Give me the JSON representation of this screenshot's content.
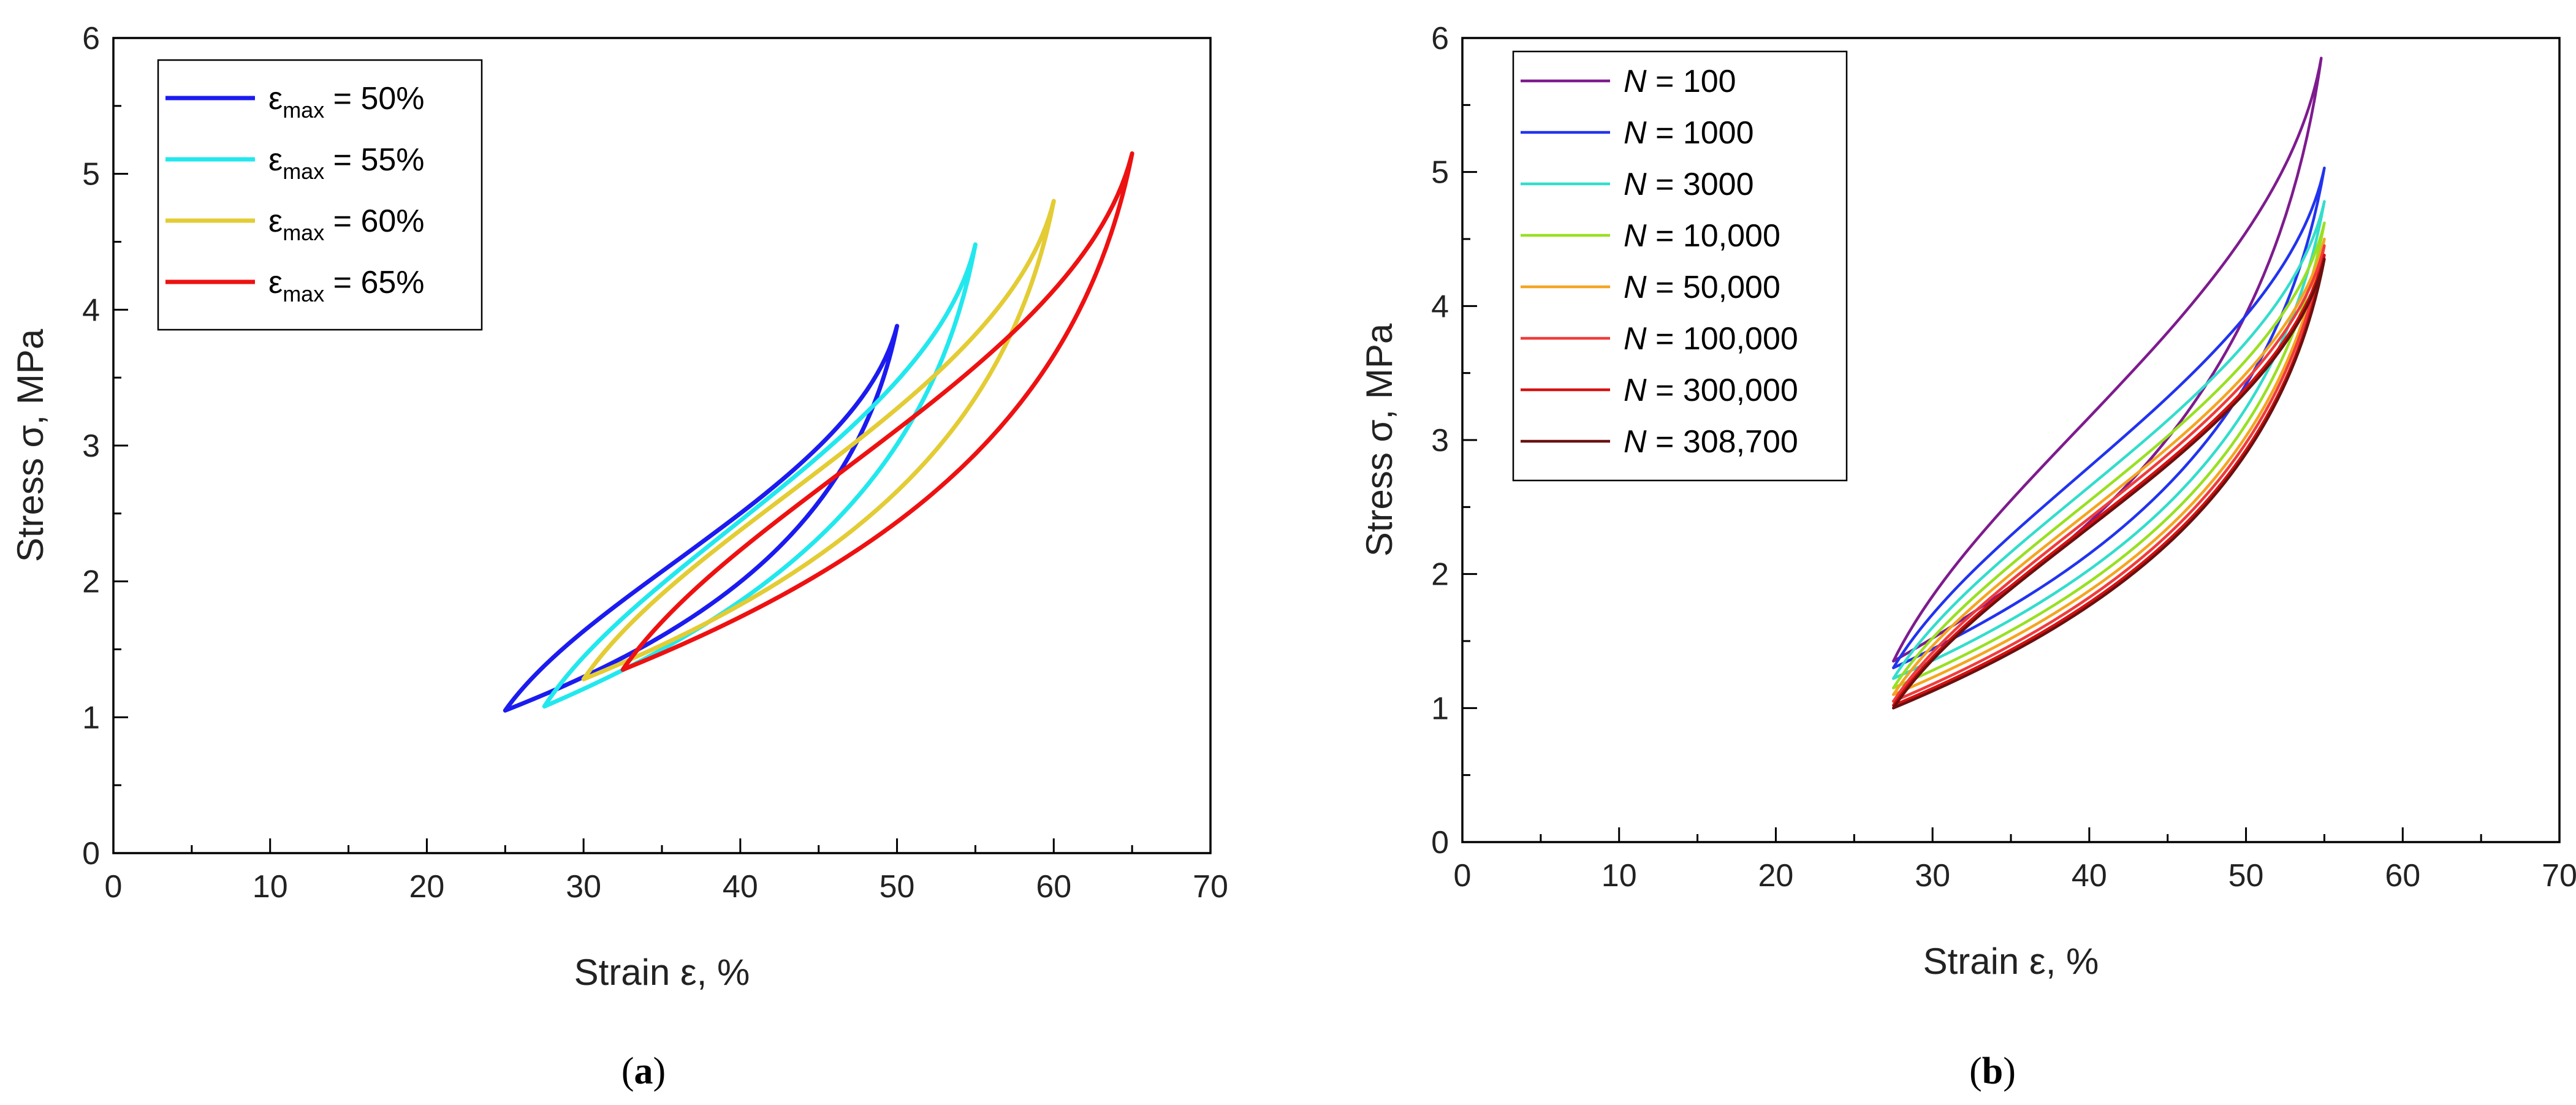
{
  "chart_data": [
    {
      "type": "line",
      "panel": "a",
      "caption_letter": "a",
      "xlabel": "Strain ε, %",
      "ylabel": "Stress σ, MPa",
      "xlim": [
        0,
        70
      ],
      "ylim": [
        0,
        6
      ],
      "xticks": [
        "0",
        "10",
        "20",
        "30",
        "40",
        "50",
        "60",
        "70"
      ],
      "yticks": [
        "0",
        "1",
        "2",
        "3",
        "4",
        "5",
        "6"
      ],
      "legend_position": "top-left",
      "series": [
        {
          "name_main": "ε",
          "name_sub": "max",
          "name_rest": " = 50%",
          "color": "#1b1bf0",
          "emin": 25,
          "smin": 1.05,
          "emax": 50,
          "smax": 3.88
        },
        {
          "name_main": "ε",
          "name_sub": "max",
          "name_rest": " = 55%",
          "color": "#22e8ee",
          "emin": 27.5,
          "smin": 1.08,
          "emax": 55,
          "smax": 4.48
        },
        {
          "name_main": "ε",
          "name_sub": "max",
          "name_rest": " = 60%",
          "color": "#e3cc34",
          "emin": 30,
          "smin": 1.28,
          "emax": 60,
          "smax": 4.8
        },
        {
          "name_main": "ε",
          "name_sub": "max",
          "name_rest": " = 65%",
          "color": "#ee1111",
          "emin": 32.5,
          "smin": 1.35,
          "emax": 65,
          "smax": 5.15
        }
      ]
    },
    {
      "type": "line",
      "panel": "b",
      "caption_letter": "b",
      "xlabel": "Strain ε, %",
      "ylabel": "Stress σ, MPa",
      "xlim": [
        0,
        70
      ],
      "ylim": [
        0,
        6
      ],
      "xticks": [
        "0",
        "10",
        "20",
        "30",
        "40",
        "50",
        "60",
        "70"
      ],
      "yticks": [
        "0",
        "1",
        "2",
        "3",
        "4",
        "5",
        "6"
      ],
      "legend_position": "top-left",
      "series": [
        {
          "name_var": "N",
          "name_rest": " = 100",
          "color": "#7e1b8e",
          "emin": 27.5,
          "smin": 1.35,
          "emax": 54.8,
          "smax": 5.85
        },
        {
          "name_var": "N",
          "name_rest": " = 1000",
          "color": "#2233ee",
          "emin": 27.5,
          "smin": 1.3,
          "emax": 55,
          "smax": 5.03
        },
        {
          "name_var": "N",
          "name_rest": " = 3000",
          "color": "#33ddcc",
          "emin": 27.5,
          "smin": 1.22,
          "emax": 55,
          "smax": 4.78
        },
        {
          "name_var": "N",
          "name_rest": " = 10,000",
          "color": "#99e022",
          "emin": 27.5,
          "smin": 1.15,
          "emax": 55,
          "smax": 4.62
        },
        {
          "name_var": "N",
          "name_rest": " = 50,000",
          "color": "#f4a520",
          "emin": 27.5,
          "smin": 1.1,
          "emax": 55,
          "smax": 4.5
        },
        {
          "name_var": "N",
          "name_rest": " = 100,000",
          "color": "#f03c3c",
          "emin": 27.5,
          "smin": 1.05,
          "emax": 55,
          "smax": 4.45
        },
        {
          "name_var": "N",
          "name_rest": " = 300,000",
          "color": "#d61010",
          "emin": 27.5,
          "smin": 1.02,
          "emax": 55,
          "smax": 4.38
        },
        {
          "name_var": "N",
          "name_rest": " = 308,700",
          "color": "#6a1010",
          "emin": 27.5,
          "smin": 1.0,
          "emax": 55,
          "smax": 4.35
        }
      ]
    }
  ]
}
